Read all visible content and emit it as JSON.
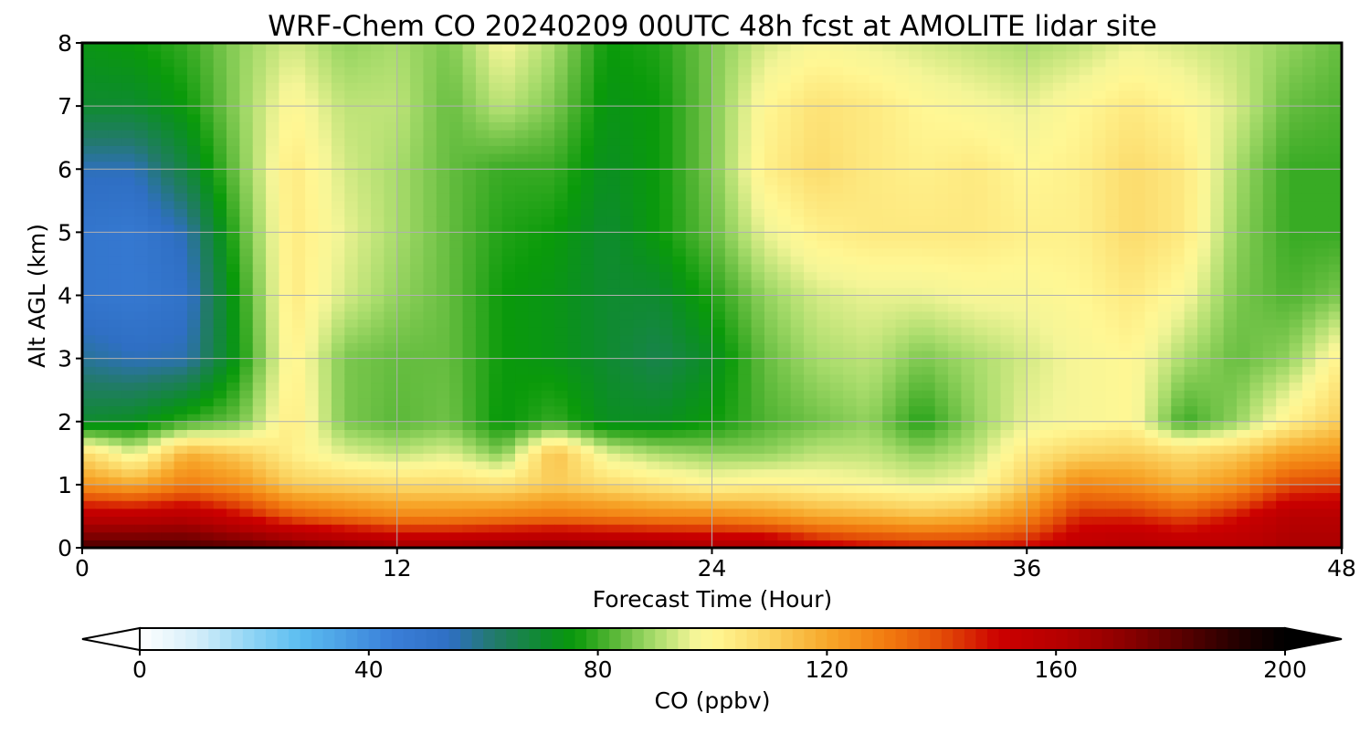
{
  "chart_data": {
    "type": "heatmap",
    "title": "WRF-Chem CO  20240209 00UTC 48h fcst at AMOLITE lidar site",
    "xlabel": "Forecast Time (Hour)",
    "ylabel": "Alt AGL (km)",
    "xlim": [
      0,
      48
    ],
    "ylim": [
      0,
      8
    ],
    "xticks": [
      "0",
      "12",
      "24",
      "36",
      "48"
    ],
    "yticks": [
      "0",
      "1",
      "2",
      "3",
      "4",
      "5",
      "6",
      "7",
      "8"
    ],
    "grid": true,
    "x": [
      0,
      2,
      4,
      6,
      8,
      10,
      12,
      14,
      16,
      18,
      20,
      22,
      24,
      26,
      28,
      30,
      32,
      34,
      36,
      38,
      40,
      42,
      44,
      46,
      48
    ],
    "y": [
      0,
      0.5,
      1,
      1.5,
      2,
      3,
      4,
      5,
      6,
      7,
      8
    ],
    "z": [
      [
        185,
        185,
        185,
        182,
        178,
        172,
        168,
        168,
        170,
        172,
        170,
        168,
        165,
        165,
        155,
        150,
        148,
        148,
        150,
        158,
        162,
        160,
        160,
        165,
        165
      ],
      [
        158,
        158,
        160,
        150,
        138,
        133,
        128,
        128,
        130,
        132,
        130,
        128,
        128,
        125,
        120,
        118,
        115,
        118,
        128,
        145,
        145,
        140,
        148,
        160,
        160
      ],
      [
        125,
        120,
        130,
        125,
        112,
        110,
        108,
        108,
        106,
        112,
        108,
        104,
        100,
        102,
        100,
        98,
        96,
        98,
        112,
        128,
        125,
        118,
        125,
        140,
        142
      ],
      [
        108,
        95,
        118,
        112,
        102,
        95,
        92,
        95,
        86,
        115,
        95,
        90,
        88,
        88,
        92,
        92,
        88,
        92,
        104,
        110,
        112,
        108,
        112,
        122,
        125
      ],
      [
        70,
        72,
        80,
        85,
        104,
        86,
        83,
        85,
        75,
        80,
        72,
        72,
        76,
        82,
        85,
        88,
        78,
        88,
        96,
        98,
        100,
        80,
        88,
        102,
        112
      ],
      [
        58,
        55,
        56,
        76,
        102,
        86,
        84,
        84,
        76,
        74,
        70,
        66,
        72,
        84,
        90,
        92,
        86,
        90,
        94,
        98,
        100,
        90,
        84,
        88,
        102
      ],
      [
        50,
        48,
        52,
        78,
        104,
        94,
        88,
        84,
        76,
        74,
        70,
        70,
        78,
        88,
        94,
        96,
        96,
        98,
        98,
        100,
        104,
        98,
        86,
        82,
        86
      ],
      [
        50,
        48,
        56,
        82,
        104,
        96,
        90,
        84,
        78,
        76,
        70,
        76,
        84,
        96,
        102,
        104,
        104,
        104,
        102,
        102,
        108,
        104,
        88,
        80,
        80
      ],
      [
        55,
        55,
        68,
        86,
        104,
        94,
        90,
        84,
        80,
        80,
        72,
        76,
        86,
        102,
        108,
        104,
        102,
        104,
        100,
        102,
        108,
        104,
        90,
        80,
        80
      ],
      [
        70,
        70,
        76,
        88,
        100,
        92,
        92,
        84,
        92,
        86,
        74,
        76,
        86,
        100,
        106,
        104,
        100,
        98,
        96,
        100,
        104,
        100,
        94,
        84,
        82
      ],
      [
        74,
        76,
        80,
        88,
        94,
        88,
        90,
        86,
        98,
        90,
        76,
        78,
        86,
        94,
        98,
        96,
        94,
        92,
        90,
        92,
        96,
        94,
        92,
        88,
        84
      ]
    ],
    "colorbar": {
      "label": "CO  (ppbv)",
      "min": 0,
      "max": 200,
      "ticks": [
        "0",
        "40",
        "80",
        "120",
        "160",
        "200"
      ],
      "extend": "both",
      "stops": [
        [
          0,
          "#ffffff"
        ],
        [
          10,
          "#d4eef9"
        ],
        [
          20,
          "#8cd3f5"
        ],
        [
          28,
          "#5bbdf0"
        ],
        [
          44,
          "#3a7fd8"
        ],
        [
          54,
          "#2f6fc4"
        ],
        [
          62,
          "#227a6a"
        ],
        [
          72,
          "#0b8f22"
        ],
        [
          76,
          "#0a9a0a"
        ],
        [
          82,
          "#4fb331"
        ],
        [
          90,
          "#a9dc6c"
        ],
        [
          97,
          "#f4f597"
        ],
        [
          100,
          "#fff794"
        ],
        [
          110,
          "#fbd462"
        ],
        [
          120,
          "#f7a72a"
        ],
        [
          130,
          "#f27d10"
        ],
        [
          140,
          "#e34d07"
        ],
        [
          150,
          "#cc0000"
        ],
        [
          162,
          "#b30000"
        ],
        [
          172,
          "#8c0000"
        ],
        [
          182,
          "#5a0000"
        ],
        [
          192,
          "#220000"
        ],
        [
          200,
          "#000000"
        ]
      ]
    }
  }
}
